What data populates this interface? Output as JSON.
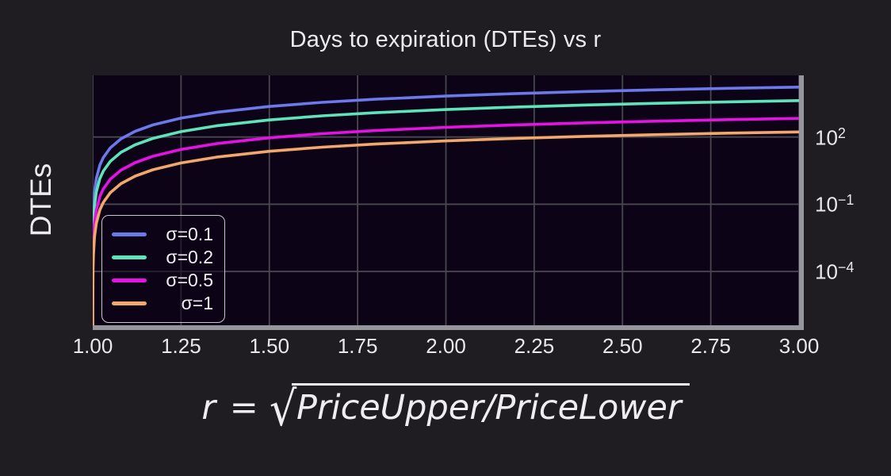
{
  "formula": {
    "lhs": "r =",
    "sqrt_symbol": "√",
    "radicand": "PriceUpper/PriceLower"
  },
  "colors": {
    "background": "#1f1d22",
    "panel_background": "#0d0317",
    "grid": "#49474f",
    "spine_shadow": "#96959d",
    "text": "#e9e7ec",
    "legend_border": "#c9c7ce"
  },
  "chart_data": {
    "type": "line",
    "title": "Days to expiration (DTEs) vs r",
    "ylabel": "DTEs",
    "xlabel": "r = √(PriceUpper/PriceLower)",
    "yscale": "log",
    "grid": true,
    "legend_position": "lower-left-inside",
    "xlim": [
      1.0,
      3.0
    ],
    "ylim_log10": [
      -6.4,
      4.75
    ],
    "x_ticks": [
      {
        "label": "1.00",
        "value": 1.0
      },
      {
        "label": "1.25",
        "value": 1.25
      },
      {
        "label": "1.50",
        "value": 1.5
      },
      {
        "label": "1.75",
        "value": 1.75
      },
      {
        "label": "2.00",
        "value": 2.0
      },
      {
        "label": "2.25",
        "value": 2.25
      },
      {
        "label": "2.50",
        "value": 2.5
      },
      {
        "label": "2.75",
        "value": 2.75
      },
      {
        "label": "3.00",
        "value": 3.0
      }
    ],
    "y_ticks": [
      {
        "base": "10",
        "exp": "2",
        "log10": 2
      },
      {
        "base": "10",
        "exp": "−1",
        "log10": -1
      },
      {
        "base": "10",
        "exp": "−4",
        "log10": -4
      }
    ],
    "x": [
      1.000001,
      1.00001,
      1.0001,
      1.001,
      1.002,
      1.005,
      1.01,
      1.02,
      1.03,
      1.05,
      1.08,
      1.12,
      1.17,
      1.25,
      1.35,
      1.5,
      1.65,
      1.8,
      2.0,
      2.2,
      2.4,
      2.6,
      2.8,
      3.0
    ],
    "series": [
      {
        "name": "σ=0.1",
        "sigma": 0.1,
        "color": "#6d79ea",
        "values": [
          1.4e-08,
          1.4e-06,
          0.00014,
          0.01399,
          0.05589,
          0.3483,
          1.386,
          5.49,
          12.23,
          33.33,
          82.92,
          179.8,
          345.1,
          697.1,
          1261,
          2302,
          3511,
          4837,
          6726,
          8703,
          10730,
          12782,
          14842,
          16897
        ]
      },
      {
        "name": "σ=0.2",
        "sigma": 0.2,
        "color": "#5fe3bb",
        "values": [
          3.5e-09,
          3.5e-07,
          3.5e-05,
          0.003497,
          0.01397,
          0.08708,
          0.3465,
          1.373,
          3.058,
          8.332,
          20.73,
          44.95,
          86.28,
          174.3,
          315.2,
          575.4,
          877.7,
          1209,
          1682,
          2176,
          2683,
          3196,
          3710,
          4224
        ]
      },
      {
        "name": "σ=0.5",
        "sigma": 0.5,
        "color": "#e413e4",
        "values": [
          5.6e-10,
          5.6e-08,
          5.6e-06,
          0.00056,
          0.002235,
          0.01393,
          0.05544,
          0.2196,
          0.4893,
          1.333,
          3.317,
          7.192,
          13.8,
          27.88,
          50.44,
          92.07,
          140.4,
          193.5,
          269.1,
          348.1,
          429.2,
          511.3,
          593.7,
          675.9
        ]
      },
      {
        "name": "σ=1",
        "sigma": 1,
        "color": "#f2a76c",
        "values": [
          1.4e-10,
          1.4e-08,
          1.4e-06,
          0.00014,
          0.000559,
          0.003483,
          0.01386,
          0.0549,
          0.1223,
          0.3333,
          0.8292,
          1.798,
          3.451,
          6.971,
          12.61,
          23.02,
          35.11,
          48.37,
          67.26,
          87.03,
          107.3,
          127.8,
          148.4,
          169.0
        ]
      }
    ]
  }
}
